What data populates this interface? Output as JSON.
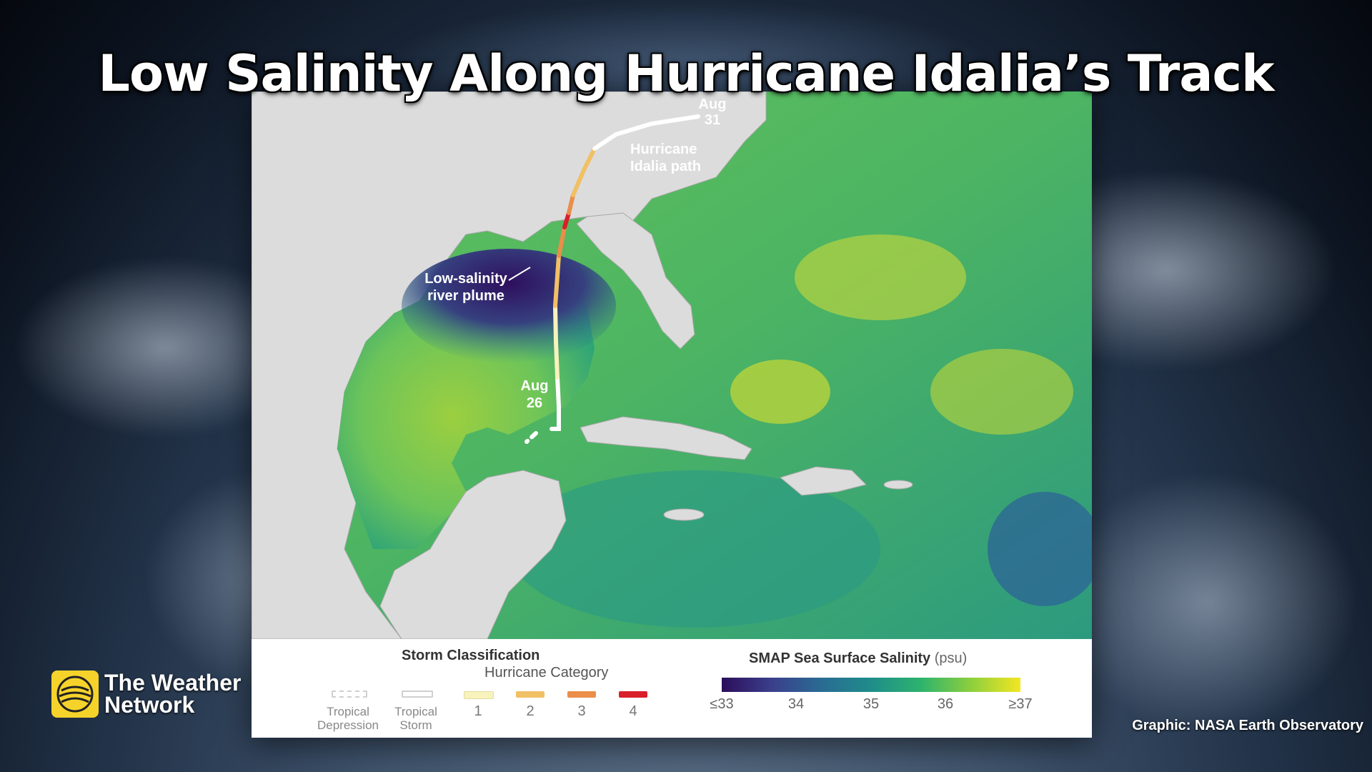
{
  "headline": "Low Salinity Along Hurricane Idalia’s Track",
  "map": {
    "annotations": {
      "end_date_month": "Aug",
      "end_date_day": "31",
      "start_date_month": "Aug",
      "start_date_day": "26",
      "path_label_line1": "Hurricane",
      "path_label_line2": "Idalia path",
      "plume_label_line1": "Low-salinity",
      "plume_label_line2": "river plume"
    }
  },
  "legend": {
    "storm_title": "Storm Classification",
    "hurricane_category_label": "Hurricane Category",
    "storm_items": [
      {
        "label_line1": "Tropical",
        "label_line2": "Depression",
        "color": "#ffffff"
      },
      {
        "label_line1": "Tropical",
        "label_line2": "Storm",
        "color": "#ffffff"
      },
      {
        "label_line1": "1",
        "label_line2": "",
        "color": "#f8f2bd"
      },
      {
        "label_line1": "2",
        "label_line2": "",
        "color": "#f1c064"
      },
      {
        "label_line1": "3",
        "label_line2": "",
        "color": "#ea8e4a"
      },
      {
        "label_line1": "4",
        "label_line2": "",
        "color": "#d81f2a"
      }
    ],
    "salinity_title": "SMAP Sea Surface Salinity",
    "salinity_unit": "(psu)",
    "salinity_ticks": [
      "≤33",
      "34",
      "35",
      "36",
      "≥37"
    ],
    "salinity_colors": [
      "#2b0e5a",
      "#3b3f8c",
      "#2a6b93",
      "#1f8d8a",
      "#2db36e",
      "#8ccf3d",
      "#f3e622"
    ]
  },
  "branding": {
    "logo_line1": "The Weather",
    "logo_line2": "Network",
    "logo_icon": "weather-network-globe-icon",
    "credit": "Graphic: NASA Earth Observatory"
  }
}
